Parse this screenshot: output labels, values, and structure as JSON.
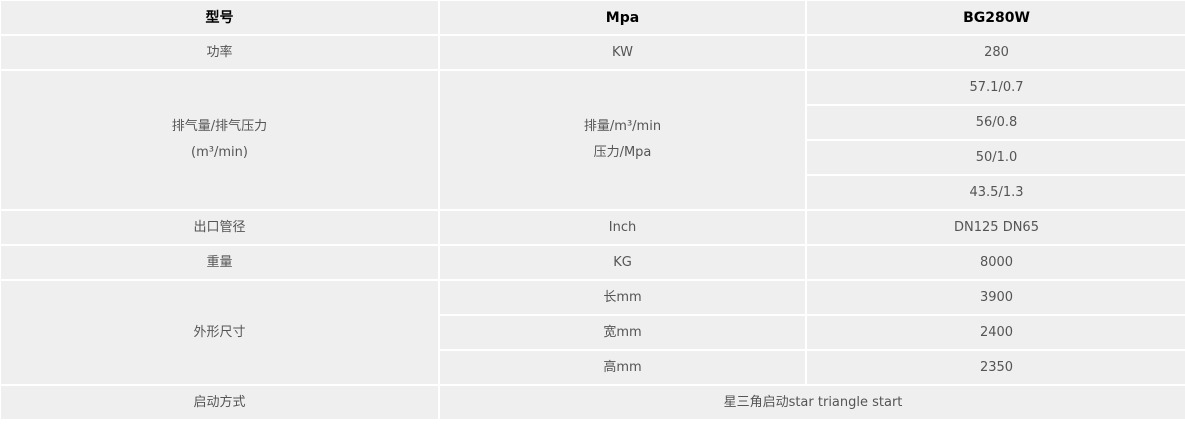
{
  "header": {
    "model_label": "型号",
    "unit_label": "Mpa",
    "model_value": "BG280W"
  },
  "power": {
    "label": "功率",
    "unit": "KW",
    "value": "280"
  },
  "displacement": {
    "label_line1": "排气量/排气压力",
    "label_line2": "(m³/min)",
    "unit_line1": "排量/m³/min",
    "unit_line2": "压力/Mpa",
    "values": [
      "57.1/0.7",
      "56/0.8",
      "50/1.0",
      "43.5/1.3"
    ]
  },
  "outlet": {
    "label": "出口管径",
    "unit": "Inch",
    "value": "DN125 DN65"
  },
  "weight": {
    "label": "重量",
    "unit": "KG",
    "value": "8000"
  },
  "dimensions": {
    "label": "外形尺寸",
    "items": [
      {
        "unit": "长mm",
        "value": "3900"
      },
      {
        "unit": "宽mm",
        "value": "2400"
      },
      {
        "unit": "高mm",
        "value": "2350"
      }
    ]
  },
  "start": {
    "label": "启动方式",
    "value": "星三角启动star triangle start"
  }
}
